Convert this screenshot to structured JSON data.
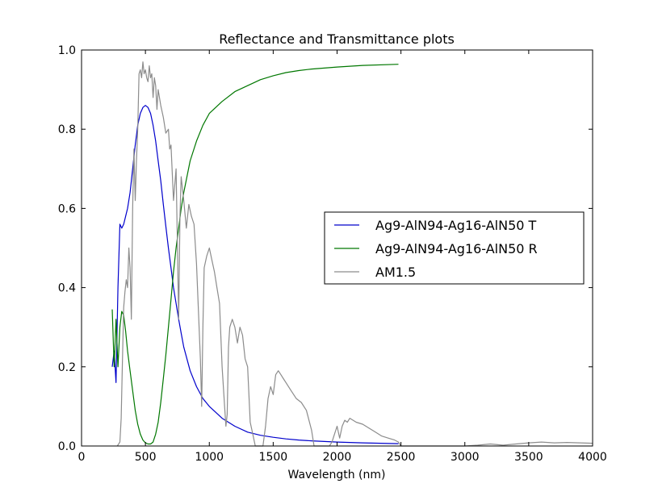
{
  "chart_data": {
    "type": "line",
    "title": "Reflectance and Transmittance plots",
    "xlabel": "Wavelength (nm)",
    "ylabel": "",
    "xlim": [
      0,
      4000
    ],
    "ylim": [
      0,
      1
    ],
    "xticks": [
      0,
      500,
      1000,
      1500,
      2000,
      2500,
      3000,
      3500,
      4000
    ],
    "xtick_labels": [
      "0",
      "500",
      "1000",
      "1500",
      "2000",
      "2500",
      "3000",
      "3500",
      "4000"
    ],
    "yticks": [
      0,
      0.2,
      0.4,
      0.6,
      0.8,
      1.0
    ],
    "ytick_labels": [
      "0.0",
      "0.2",
      "0.4",
      "0.6",
      "0.8",
      "1.0"
    ],
    "grid": false,
    "legend_position": "center-right",
    "series": [
      {
        "name": "Ag9-AlN94-Ag16-AlN50 T",
        "color": "#0000cc",
        "x": [
          240,
          255,
          270,
          285,
          300,
          315,
          330,
          345,
          360,
          380,
          400,
          420,
          440,
          460,
          480,
          500,
          520,
          540,
          560,
          580,
          600,
          620,
          640,
          660,
          680,
          700,
          720,
          740,
          760,
          780,
          800,
          850,
          900,
          950,
          1000,
          1100,
          1200,
          1300,
          1400,
          1500,
          1600,
          1700,
          1800,
          2000,
          2200,
          2480
        ],
        "y": [
          0.2,
          0.24,
          0.16,
          0.4,
          0.56,
          0.55,
          0.56,
          0.58,
          0.6,
          0.64,
          0.7,
          0.76,
          0.81,
          0.84,
          0.855,
          0.86,
          0.855,
          0.84,
          0.81,
          0.77,
          0.72,
          0.67,
          0.61,
          0.555,
          0.5,
          0.45,
          0.4,
          0.36,
          0.32,
          0.285,
          0.25,
          0.19,
          0.15,
          0.12,
          0.1,
          0.07,
          0.05,
          0.035,
          0.027,
          0.022,
          0.018,
          0.015,
          0.013,
          0.01,
          0.008,
          0.006
        ]
      },
      {
        "name": "Ag9-AlN94-Ag16-AlN50 R",
        "color": "#007700",
        "x": [
          240,
          255,
          270,
          285,
          300,
          315,
          330,
          345,
          360,
          380,
          400,
          420,
          440,
          460,
          480,
          500,
          520,
          540,
          560,
          580,
          600,
          620,
          640,
          660,
          680,
          700,
          720,
          740,
          760,
          780,
          800,
          850,
          900,
          950,
          1000,
          1100,
          1200,
          1300,
          1400,
          1500,
          1600,
          1700,
          1800,
          2000,
          2200,
          2480
        ],
        "y": [
          0.345,
          0.2,
          0.32,
          0.2,
          0.3,
          0.34,
          0.33,
          0.29,
          0.24,
          0.19,
          0.14,
          0.09,
          0.055,
          0.03,
          0.015,
          0.008,
          0.005,
          0.005,
          0.01,
          0.03,
          0.06,
          0.11,
          0.17,
          0.23,
          0.3,
          0.37,
          0.44,
          0.5,
          0.55,
          0.6,
          0.64,
          0.72,
          0.77,
          0.81,
          0.84,
          0.87,
          0.895,
          0.91,
          0.925,
          0.935,
          0.943,
          0.948,
          0.952,
          0.957,
          0.961,
          0.964
        ]
      },
      {
        "name": "AM1.5",
        "color": "#8c8c8c",
        "x": [
          280,
          300,
          310,
          320,
          330,
          340,
          350,
          360,
          370,
          380,
          390,
          400,
          410,
          420,
          430,
          440,
          450,
          460,
          470,
          480,
          490,
          500,
          510,
          520,
          530,
          540,
          550,
          560,
          570,
          580,
          590,
          600,
          620,
          640,
          660,
          680,
          690,
          700,
          720,
          740,
          760,
          770,
          780,
          800,
          820,
          840,
          860,
          880,
          900,
          920,
          930,
          940,
          950,
          960,
          980,
          1000,
          1020,
          1040,
          1060,
          1080,
          1100,
          1120,
          1130,
          1140,
          1150,
          1160,
          1180,
          1200,
          1220,
          1240,
          1260,
          1280,
          1300,
          1320,
          1340,
          1360,
          1380,
          1400,
          1420,
          1440,
          1460,
          1480,
          1500,
          1520,
          1540,
          1560,
          1580,
          1600,
          1640,
          1680,
          1720,
          1760,
          1800,
          1820,
          1840,
          1860,
          1900,
          1940,
          1960,
          1980,
          2000,
          2020,
          2040,
          2060,
          2080,
          2100,
          2150,
          2200,
          2250,
          2300,
          2350,
          2400,
          2450,
          2480,
          2500,
          2600,
          2800,
          3000,
          3100,
          3200,
          3300,
          3400,
          3500,
          3600,
          3700,
          3800,
          4000
        ],
        "y": [
          0.0,
          0.01,
          0.07,
          0.21,
          0.35,
          0.39,
          0.42,
          0.4,
          0.5,
          0.45,
          0.32,
          0.6,
          0.75,
          0.62,
          0.72,
          0.8,
          0.94,
          0.95,
          0.93,
          0.97,
          0.94,
          0.95,
          0.93,
          0.92,
          0.96,
          0.93,
          0.94,
          0.88,
          0.93,
          0.91,
          0.85,
          0.9,
          0.86,
          0.83,
          0.79,
          0.8,
          0.75,
          0.76,
          0.62,
          0.7,
          0.32,
          0.58,
          0.68,
          0.62,
          0.55,
          0.61,
          0.58,
          0.56,
          0.46,
          0.3,
          0.22,
          0.1,
          0.3,
          0.45,
          0.48,
          0.5,
          0.47,
          0.44,
          0.4,
          0.36,
          0.2,
          0.1,
          0.05,
          0.08,
          0.25,
          0.3,
          0.32,
          0.3,
          0.26,
          0.3,
          0.28,
          0.22,
          0.2,
          0.06,
          0.03,
          0.0,
          0.0,
          0.0,
          0.0,
          0.05,
          0.12,
          0.15,
          0.13,
          0.18,
          0.19,
          0.18,
          0.17,
          0.16,
          0.14,
          0.12,
          0.11,
          0.09,
          0.04,
          0.0,
          0.0,
          0.0,
          0.0,
          0.0,
          0.01,
          0.03,
          0.05,
          0.02,
          0.05,
          0.065,
          0.06,
          0.07,
          0.06,
          0.055,
          0.045,
          0.035,
          0.025,
          0.02,
          0.015,
          0.01,
          0.0,
          0.0,
          0.0,
          0.0,
          0.002,
          0.005,
          0.002,
          0.005,
          0.008,
          0.01,
          0.008,
          0.009,
          0.007
        ]
      }
    ]
  }
}
